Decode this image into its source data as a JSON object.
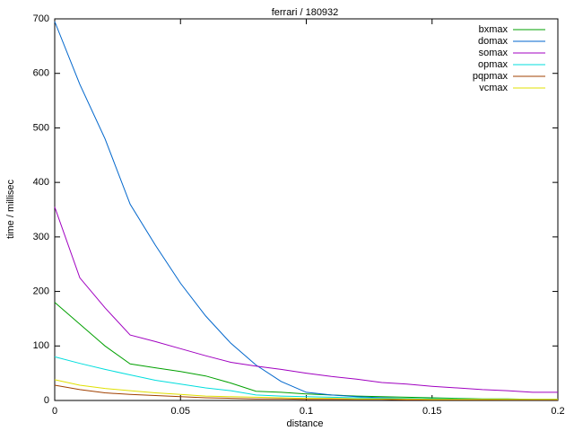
{
  "chart_data": {
    "type": "line",
    "title": "ferrari / 180932",
    "xlabel": "distance",
    "ylabel": "time / millisec",
    "x": [
      0,
      0.01,
      0.02,
      0.03,
      0.04,
      0.05,
      0.06,
      0.07,
      0.08,
      0.09,
      0.1,
      0.11,
      0.12,
      0.13,
      0.14,
      0.15,
      0.16,
      0.17,
      0.18,
      0.19,
      0.2
    ],
    "series": [
      {
        "name": "bxmax",
        "color": "#00a000",
        "values": [
          180,
          140,
          100,
          67,
          60,
          53,
          45,
          32,
          17,
          15,
          12,
          10,
          8,
          7,
          6,
          5,
          4,
          3,
          3,
          2,
          2
        ]
      },
      {
        "name": "domax",
        "color": "#0066cc",
        "values": [
          695,
          580,
          480,
          360,
          285,
          215,
          155,
          105,
          65,
          35,
          15,
          10,
          7,
          5,
          4,
          3,
          2,
          2,
          1,
          1,
          1
        ]
      },
      {
        "name": "somax",
        "color": "#a000c0",
        "values": [
          355,
          225,
          170,
          120,
          108,
          95,
          82,
          70,
          63,
          57,
          50,
          44,
          39,
          33,
          30,
          26,
          23,
          20,
          18,
          15,
          15
        ]
      },
      {
        "name": "opmax",
        "color": "#00dddd",
        "values": [
          80,
          68,
          57,
          47,
          37,
          30,
          23,
          18,
          10,
          8,
          7,
          6,
          5,
          4,
          4,
          3,
          3,
          2,
          2,
          2,
          2
        ]
      },
      {
        "name": "pqpmax",
        "color": "#a04000",
        "values": [
          28,
          20,
          14,
          11,
          9,
          7,
          5,
          4,
          3,
          3,
          2,
          2,
          2,
          2,
          1,
          1,
          1,
          1,
          1,
          1,
          1
        ]
      },
      {
        "name": "vcmax",
        "color": "#e0e000",
        "values": [
          38,
          28,
          22,
          18,
          14,
          11,
          8,
          7,
          6,
          5,
          4,
          4,
          3,
          3,
          3,
          2,
          2,
          2,
          2,
          2,
          2
        ]
      }
    ],
    "xlim": [
      0,
      0.2
    ],
    "xticks": [
      0,
      0.05,
      0.1,
      0.15,
      0.2
    ],
    "ylim": [
      0,
      700
    ],
    "yticks": [
      0,
      100,
      200,
      300,
      400,
      500,
      600,
      700
    ],
    "grid": false,
    "legend": "top-right"
  }
}
